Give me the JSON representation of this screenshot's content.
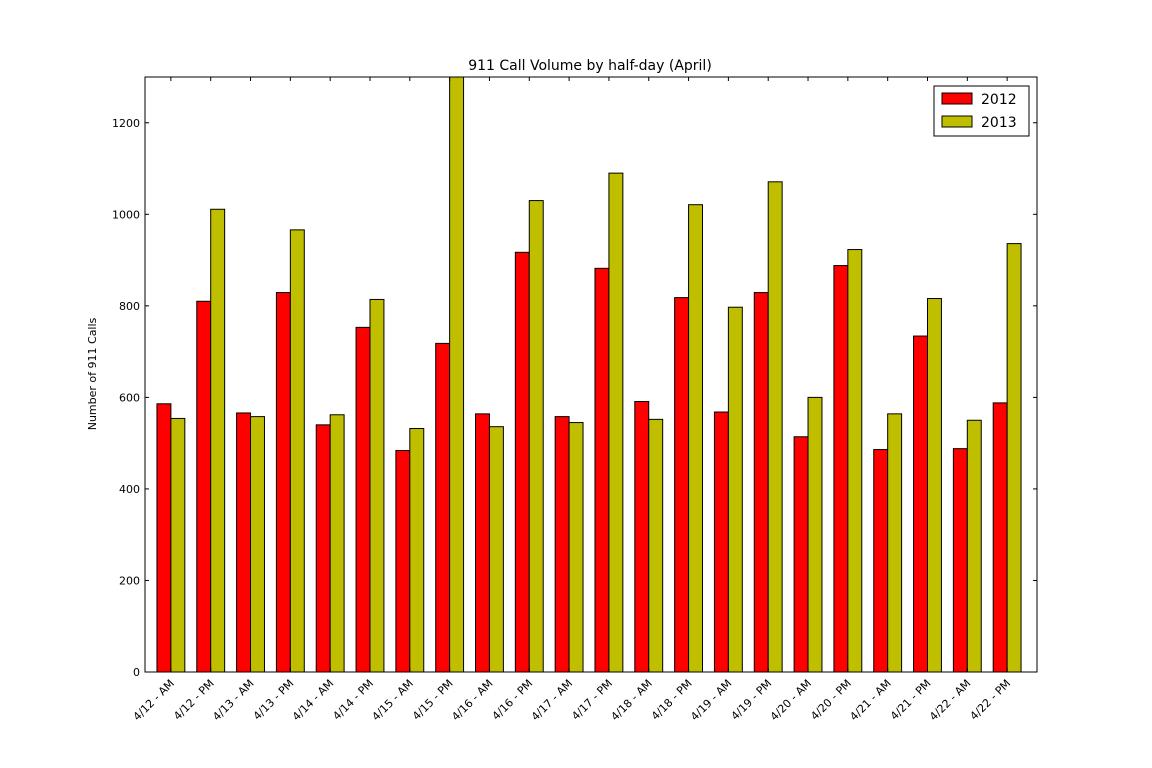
{
  "chart_data": {
    "type": "bar",
    "title": "911 Call Volume by half-day (April)",
    "xlabel": "",
    "ylabel": "Number of 911 Calls",
    "ylim": [
      0,
      1300
    ],
    "yticks": [
      0,
      200,
      400,
      600,
      800,
      1000,
      1200
    ],
    "grid": false,
    "legend_position": "top-right",
    "categories": [
      "4/12 - AM",
      "4/12 - PM",
      "4/13 - AM",
      "4/13 - PM",
      "4/14 - AM",
      "4/14 - PM",
      "4/15 - AM",
      "4/15 - PM",
      "4/16 - AM",
      "4/16 - PM",
      "4/17 - AM",
      "4/17 - PM",
      "4/18 - AM",
      "4/18 - PM",
      "4/19 - AM",
      "4/19 - PM",
      "4/20 - AM",
      "4/20 - PM",
      "4/21 - AM",
      "4/21 - PM",
      "4/22 - AM",
      "4/22 - PM"
    ],
    "series": [
      {
        "name": "2012",
        "color": "#ff0000",
        "values": [
          586,
          810,
          566,
          829,
          540,
          753,
          484,
          718,
          564,
          917,
          558,
          882,
          591,
          818,
          568,
          829,
          514,
          888,
          486,
          734,
          488,
          588
        ]
      },
      {
        "name": "2013",
        "color": "#bfbf00",
        "values": [
          554,
          1011,
          558,
          966,
          562,
          814,
          532,
          1300,
          536,
          1030,
          545,
          1090,
          552,
          1021,
          797,
          1071,
          600,
          923,
          564,
          816,
          550,
          936
        ]
      }
    ]
  }
}
